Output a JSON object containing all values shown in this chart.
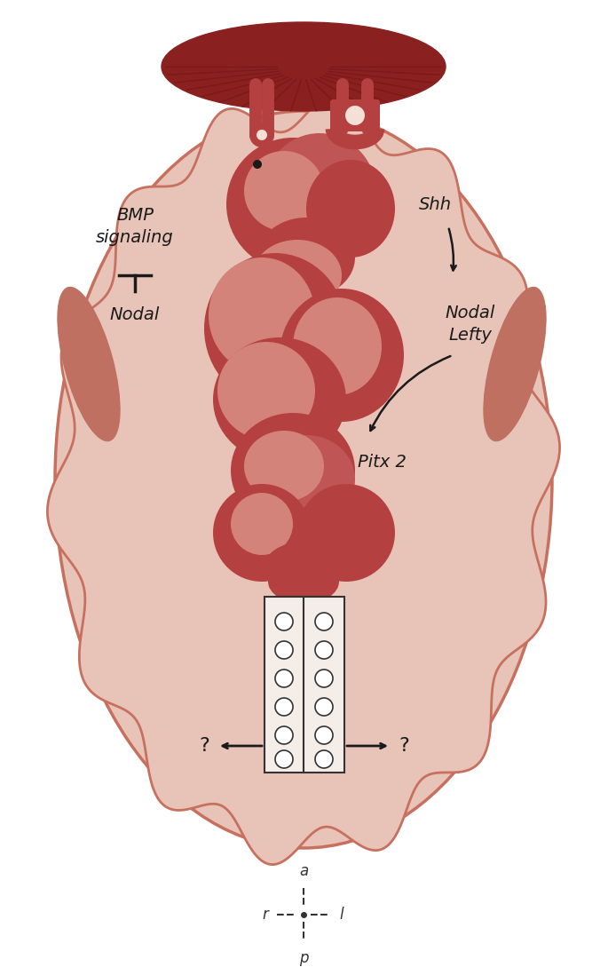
{
  "bg_color": "#ffffff",
  "outer_shell_color": "#e8c4b8",
  "outer_shell_edge_color": "#c87060",
  "inner_body_color": "#c0504d",
  "inner_body_light": "#d4837a",
  "head_stripe_color": "#8b2020",
  "spine_color": "#f5e0d8",
  "spine_line_color": "#333333",
  "circle_color": "#f5e8e0",
  "arrow_color": "#1a1a1a",
  "text_color": "#1a1a1a",
  "title": "BMP\nsignaling",
  "labels": {
    "bmp": "BMP\nsignaling",
    "nodal_left": "Nodal",
    "shh": "Shh",
    "nodal_lefty": "Nodal\nLefty",
    "pitx2": "Pitx 2",
    "q_left": "?",
    "q_right": "?",
    "orient_a": "a",
    "orient_r": "r",
    "orient_l": "l",
    "orient_p": "p"
  }
}
